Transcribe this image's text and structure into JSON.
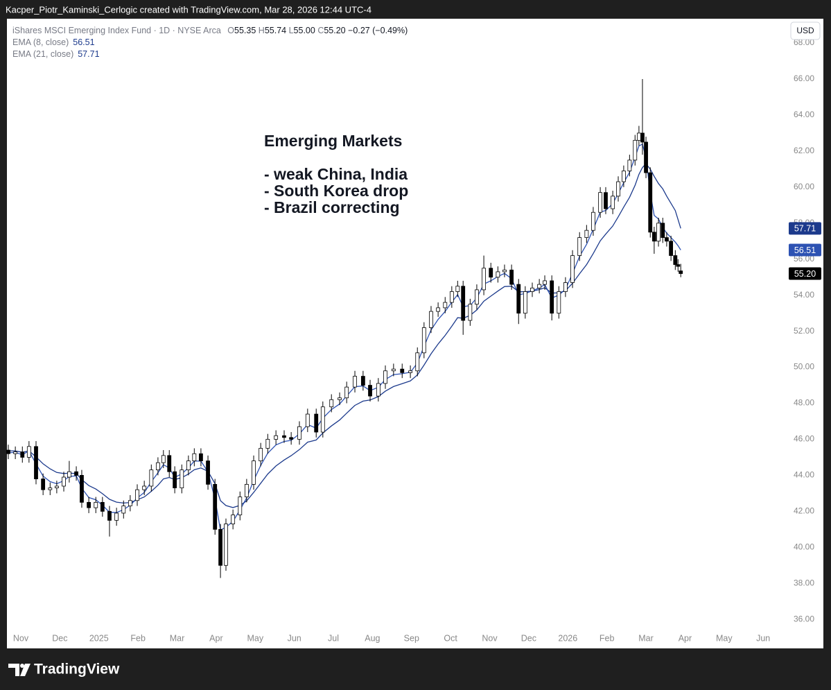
{
  "header": {
    "caption": "Kacper_Piotr_Kaminski_Cerlogic created with TradingView.com, Mar 28, 2026 12:44 UTC-4"
  },
  "footer": {
    "brand": "TradingView"
  },
  "chart_data": {
    "type": "candlestick",
    "title": "iShares MSCI Emerging Index Fund · 1D · NYSE Arca",
    "ohlc_legend": {
      "open_label": "O",
      "open": "55.35",
      "high_label": "H",
      "high": "55.74",
      "low_label": "L",
      "low": "55.00",
      "close_label": "C",
      "close": "55.20",
      "change": "−0.27 (−0.49%)"
    },
    "currency": "USD",
    "annotation": [
      "Emerging Markets",
      "- weak China, India",
      "- South Korea drop",
      "- Brazil correcting"
    ],
    "x": [
      -0.32,
      -0.14,
      0.04,
      0.21,
      0.39,
      0.57,
      0.75,
      0.92,
      1.1,
      1.24,
      1.42,
      1.56,
      1.74,
      1.92,
      2.09,
      2.27,
      2.45,
      2.63,
      2.8,
      2.98,
      3.16,
      3.34,
      3.51,
      3.65,
      3.8,
      3.94,
      4.12,
      4.29,
      4.44,
      4.61,
      4.79,
      4.97,
      5.11,
      5.25,
      5.43,
      5.61,
      5.78,
      5.96,
      6.14,
      6.32,
      6.53,
      6.74,
      6.92,
      7.13,
      7.34,
      7.56,
      7.73,
      7.95,
      8.16,
      8.34,
      8.55,
      8.76,
      8.94,
      9.15,
      9.33,
      9.54,
      9.76,
      9.97,
      10.15,
      10.32,
      10.5,
      10.68,
      10.86,
      11.03,
      11.18,
      11.32,
      11.5,
      11.67,
      11.85,
      12.03,
      12.21,
      12.38,
      12.56,
      12.74,
      12.91,
      13.09,
      13.27,
      13.41,
      13.59,
      13.77,
      13.94,
      14.12,
      14.3,
      14.48,
      14.65,
      14.83,
      14.97,
      15.15,
      15.29,
      15.43,
      15.58,
      15.72,
      15.82,
      15.91,
      16.0,
      16.11,
      16.21,
      16.32,
      16.43,
      16.53,
      16.64,
      16.75,
      16.82,
      16.89
    ],
    "open": [
      45.4,
      45.2,
      45.3,
      45.0,
      45.6,
      43.8,
      43.2,
      43.3,
      43.4,
      43.9,
      44.2,
      44.0,
      42.5,
      42.2,
      42.5,
      42.0,
      41.5,
      41.9,
      42.3,
      42.6,
      43.2,
      43.4,
      44.3,
      44.7,
      45.1,
      44.2,
      43.3,
      44.3,
      44.8,
      45.2,
      44.8,
      43.5,
      41.0,
      39.0,
      41.3,
      41.8,
      42.8,
      43.5,
      44.8,
      45.5,
      46.0,
      46.2,
      46.1,
      46.0,
      46.7,
      47.4,
      46.4,
      47.8,
      48.2,
      48.3,
      48.9,
      49.5,
      49.0,
      48.4,
      49.1,
      49.8,
      49.9,
      49.7,
      49.8,
      50.8,
      52.2,
      53.1,
      53.3,
      53.6,
      54.2,
      54.5,
      52.6,
      53.5,
      54.3,
      55.5,
      55.0,
      55.3,
      55.4,
      54.6,
      53.0,
      54.2,
      54.4,
      54.6,
      54.8,
      53.0,
      54.2,
      54.7,
      56.2,
      57.2,
      57.6,
      58.6,
      59.7,
      58.8,
      59.5,
      60.3,
      60.9,
      61.5,
      62.6,
      63.0,
      62.5,
      60.8,
      57.5,
      57.0,
      58.0,
      57.2,
      57.0,
      56.2,
      55.7,
      55.35
    ],
    "high": [
      45.7,
      45.6,
      45.6,
      45.9,
      45.9,
      44.1,
      43.6,
      43.7,
      44.2,
      44.8,
      44.5,
      44.3,
      42.8,
      42.8,
      42.8,
      42.3,
      42.2,
      42.6,
      42.9,
      43.5,
      43.7,
      44.6,
      45.0,
      45.4,
      45.4,
      44.5,
      44.6,
      45.1,
      45.5,
      45.5,
      45.1,
      43.8,
      41.3,
      41.6,
      42.1,
      43.1,
      43.8,
      45.1,
      45.8,
      46.3,
      46.5,
      46.5,
      46.4,
      47.0,
      47.7,
      47.7,
      48.1,
      48.5,
      48.6,
      49.2,
      49.8,
      49.8,
      49.3,
      49.4,
      50.1,
      50.2,
      50.2,
      50.1,
      51.1,
      52.5,
      53.4,
      53.6,
      53.9,
      54.5,
      54.8,
      54.8,
      53.8,
      54.6,
      56.2,
      55.8,
      55.6,
      55.7,
      55.7,
      54.9,
      54.5,
      54.7,
      54.9,
      55.1,
      55.1,
      54.5,
      55.0,
      56.5,
      57.5,
      57.9,
      58.9,
      60.0,
      60.0,
      59.8,
      60.6,
      61.2,
      61.8,
      62.9,
      63.4,
      66.0,
      62.8,
      61.1,
      57.8,
      58.3,
      58.3,
      57.5,
      57.3,
      56.5,
      56.0,
      55.74
    ],
    "low": [
      44.9,
      44.9,
      44.7,
      44.7,
      43.5,
      42.9,
      42.9,
      43.0,
      43.1,
      43.6,
      43.7,
      42.2,
      41.9,
      41.9,
      41.7,
      40.6,
      41.2,
      41.6,
      42.0,
      42.3,
      42.9,
      43.1,
      44.0,
      44.4,
      43.9,
      43.0,
      43.0,
      44.0,
      44.5,
      44.5,
      43.2,
      40.7,
      38.3,
      38.7,
      41.0,
      41.5,
      42.5,
      43.2,
      44.5,
      45.2,
      45.7,
      45.8,
      45.7,
      45.7,
      46.4,
      46.1,
      46.1,
      47.5,
      47.9,
      48.0,
      48.6,
      48.7,
      48.1,
      48.1,
      48.8,
      49.5,
      49.4,
      49.4,
      49.5,
      50.5,
      51.9,
      52.8,
      53.0,
      53.3,
      53.9,
      51.8,
      52.3,
      53.2,
      54.0,
      54.7,
      54.7,
      55.0,
      54.3,
      52.4,
      52.7,
      53.9,
      54.1,
      54.3,
      52.6,
      52.7,
      53.9,
      54.4,
      55.9,
      56.9,
      57.3,
      58.3,
      58.5,
      58.5,
      59.2,
      60.0,
      60.6,
      61.2,
      62.3,
      61.8,
      60.5,
      57.2,
      56.3,
      56.7,
      56.9,
      56.7,
      55.9,
      55.4,
      55.3,
      55.0
    ],
    "close": [
      45.2,
      45.3,
      45.0,
      45.6,
      43.8,
      43.2,
      43.3,
      43.4,
      43.9,
      44.2,
      44.0,
      42.5,
      42.2,
      42.5,
      42.0,
      41.5,
      41.9,
      42.3,
      42.6,
      43.2,
      43.4,
      44.3,
      44.7,
      45.1,
      44.2,
      43.3,
      44.3,
      44.8,
      45.2,
      44.8,
      43.5,
      41.0,
      39.0,
      41.3,
      41.8,
      42.8,
      43.5,
      44.8,
      45.5,
      46.0,
      46.2,
      46.1,
      46.0,
      46.7,
      47.4,
      46.4,
      47.8,
      48.2,
      48.3,
      48.9,
      49.5,
      49.0,
      48.4,
      49.1,
      49.8,
      49.9,
      49.7,
      49.8,
      50.8,
      52.2,
      53.1,
      53.3,
      53.6,
      54.2,
      54.5,
      52.6,
      53.5,
      54.3,
      55.5,
      55.0,
      55.3,
      55.4,
      54.6,
      53.0,
      54.2,
      54.4,
      54.6,
      54.8,
      53.0,
      54.2,
      54.7,
      56.2,
      57.2,
      57.6,
      58.6,
      59.7,
      58.8,
      59.5,
      60.3,
      60.9,
      61.5,
      62.6,
      63.0,
      62.5,
      60.8,
      57.5,
      57.0,
      58.0,
      57.2,
      57.0,
      56.2,
      55.7,
      55.6,
      55.2
    ],
    "up_color": "#ffffff",
    "down_color": "#000000",
    "wick_color": "#000000",
    "series": [
      {
        "name": "EMA (8, close)",
        "color": "#2d52b3",
        "values": [
          45.25,
          45.27,
          45.14,
          45.36,
          44.63,
          43.96,
          43.65,
          43.53,
          43.7,
          43.94,
          43.97,
          43.28,
          42.77,
          42.64,
          42.34,
          41.95,
          41.93,
          42.1,
          42.34,
          42.74,
          43.05,
          43.64,
          44.14,
          44.59,
          44.41,
          43.89,
          44.08,
          44.42,
          44.79,
          44.79,
          44.18,
          42.69,
          40.96,
          41.12,
          41.44,
          42.08,
          42.75,
          43.71,
          44.55,
          45.23,
          45.69,
          45.88,
          45.94,
          46.3,
          46.82,
          46.62,
          47.17,
          47.65,
          47.96,
          48.4,
          48.92,
          48.96,
          48.7,
          48.89,
          49.32,
          49.59,
          49.64,
          49.72,
          50.23,
          51.16,
          52.07,
          52.65,
          53.1,
          53.62,
          54.03,
          53.36,
          53.43,
          53.84,
          54.62,
          54.8,
          55.04,
          55.21,
          54.92,
          54.02,
          54.1,
          54.24,
          54.41,
          54.59,
          53.84,
          54.01,
          54.33,
          55.21,
          56.15,
          56.83,
          57.66,
          58.62,
          58.7,
          59.08,
          59.65,
          60.24,
          60.83,
          61.66,
          62.29,
          62.39,
          61.64,
          59.69,
          58.43,
          58.23,
          57.75,
          57.45,
          57.2,
          56.95,
          56.75,
          56.51
        ]
      },
      {
        "name": "EMA (21, close)",
        "color": "#1c3a8c",
        "values": [
          45.36,
          45.35,
          45.28,
          45.35,
          45.02,
          44.64,
          44.36,
          44.16,
          44.1,
          44.12,
          44.1,
          43.76,
          43.43,
          43.24,
          42.98,
          42.67,
          42.51,
          42.46,
          42.49,
          42.64,
          42.8,
          43.11,
          43.45,
          43.8,
          43.88,
          43.76,
          43.87,
          44.07,
          44.31,
          44.41,
          44.22,
          43.54,
          42.59,
          42.32,
          42.21,
          42.33,
          42.58,
          43.05,
          43.56,
          44.07,
          44.52,
          44.85,
          45.09,
          45.43,
          45.84,
          45.96,
          46.35,
          46.74,
          47.07,
          47.45,
          47.88,
          48.12,
          48.18,
          48.37,
          48.67,
          48.93,
          49.09,
          49.24,
          49.57,
          50.12,
          50.75,
          51.29,
          51.77,
          52.28,
          52.75,
          52.72,
          52.88,
          53.18,
          53.67,
          53.95,
          54.23,
          54.48,
          54.5,
          54.19,
          54.19,
          54.23,
          54.31,
          54.41,
          54.12,
          54.13,
          54.25,
          54.66,
          55.19,
          55.7,
          56.31,
          57.02,
          57.39,
          57.84,
          58.35,
          58.89,
          59.44,
          60.1,
          60.71,
          61.09,
          61.3,
          61.0,
          60.6,
          60.2,
          59.9,
          59.5,
          59.1,
          58.7,
          58.2,
          57.71
        ]
      }
    ],
    "xlim": [
      -0.355,
      19.6
    ],
    "xticks": [
      {
        "value": 0,
        "label": "Nov"
      },
      {
        "value": 1,
        "label": "Dec"
      },
      {
        "value": 2,
        "label": "2025"
      },
      {
        "value": 3,
        "label": "Feb"
      },
      {
        "value": 4,
        "label": "Mar"
      },
      {
        "value": 5,
        "label": "Apr"
      },
      {
        "value": 6,
        "label": "May"
      },
      {
        "value": 7,
        "label": "Jun"
      },
      {
        "value": 8,
        "label": "Jul"
      },
      {
        "value": 9,
        "label": "Aug"
      },
      {
        "value": 10,
        "label": "Sep"
      },
      {
        "value": 11,
        "label": "Oct"
      },
      {
        "value": 12,
        "label": "Nov"
      },
      {
        "value": 13,
        "label": "Dec"
      },
      {
        "value": 14,
        "label": "2026"
      },
      {
        "value": 15,
        "label": "Feb"
      },
      {
        "value": 16,
        "label": "Mar"
      },
      {
        "value": 17,
        "label": "Apr"
      },
      {
        "value": 18,
        "label": "May"
      },
      {
        "value": 19,
        "label": "Jun"
      }
    ],
    "ylim": [
      35.43,
      69.35
    ],
    "yticks": [
      {
        "value": 36,
        "label": "36.00"
      },
      {
        "value": 38,
        "label": "38.00"
      },
      {
        "value": 40,
        "label": "40.00"
      },
      {
        "value": 42,
        "label": "42.00"
      },
      {
        "value": 44,
        "label": "44.00"
      },
      {
        "value": 46,
        "label": "46.00"
      },
      {
        "value": 48,
        "label": "48.00"
      },
      {
        "value": 50,
        "label": "50.00"
      },
      {
        "value": 52,
        "label": "52.00"
      },
      {
        "value": 54,
        "label": "54.00"
      },
      {
        "value": 56,
        "label": "56.00"
      },
      {
        "value": 58,
        "label": "58.00"
      },
      {
        "value": 60,
        "label": "60.00"
      },
      {
        "value": 62,
        "label": "62.00"
      },
      {
        "value": 64,
        "label": "64.00"
      },
      {
        "value": 66,
        "label": "66.00"
      },
      {
        "value": 68,
        "label": "68.00"
      }
    ],
    "grid": false
  }
}
